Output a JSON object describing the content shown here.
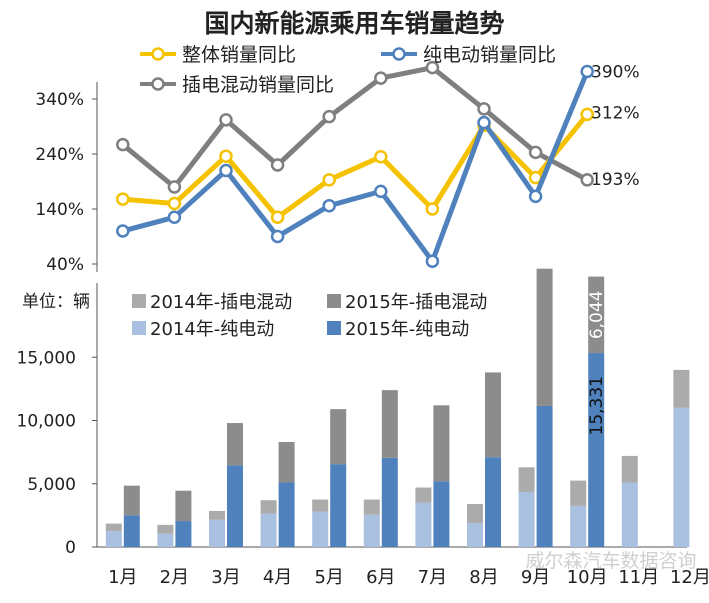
{
  "title": "国内新能源乘用车销量趋势",
  "colors": {
    "overall": "#F5C200",
    "ev_line": "#4F81BD",
    "phev_line": "#7F7F7F",
    "phev_2014": "#ABABAB",
    "phev_2015": "#8C8C8C",
    "ev_2014": "#A9C0E0",
    "ev_2015": "#4F81BD"
  },
  "watermark": "威尔森汽车数据咨询",
  "chart_data": [
    {
      "type": "line",
      "title": "国内新能源乘用车销量趋势",
      "categories": [
        "1月",
        "2月",
        "3月",
        "4月",
        "5月",
        "6月",
        "7月",
        "8月",
        "9月",
        "10月"
      ],
      "yticks": [
        "340%",
        "240%",
        "140%",
        "40%"
      ],
      "ylim": [
        40,
        400
      ],
      "legend_position": "top",
      "series": [
        {
          "name": "整体销量同比",
          "values": [
            158,
            150,
            236,
            125,
            193,
            235,
            140,
            292,
            197,
            312
          ],
          "end_label": "312%"
        },
        {
          "name": "纯电动销量同比",
          "values": [
            100,
            125,
            210,
            90,
            146,
            172,
            45,
            297,
            163,
            390
          ],
          "end_label": "390%"
        },
        {
          "name": "插电混动销量同比",
          "values": [
            257,
            180,
            302,
            220,
            308,
            378,
            397,
            322,
            243,
            193
          ],
          "end_label": "193%"
        }
      ]
    },
    {
      "type": "bar",
      "unit_label": "单位：辆",
      "categories": [
        "1月",
        "2月",
        "3月",
        "4月",
        "5月",
        "6月",
        "7月",
        "8月",
        "9月",
        "10月",
        "11月",
        "12月"
      ],
      "yticks": [
        "15,000",
        "10,000",
        "5,000",
        "0"
      ],
      "ylim": [
        0,
        18000
      ],
      "legend_position": "top-left",
      "series": [
        {
          "name": "2014年-纯电动",
          "values": [
            1250,
            1050,
            2150,
            2650,
            2800,
            2550,
            3500,
            1900,
            4350,
            3250,
            5100,
            11000
          ]
        },
        {
          "name": "2014年-插电混动",
          "values": [
            600,
            700,
            700,
            1050,
            950,
            1200,
            1200,
            1500,
            1950,
            2000,
            2100,
            3000
          ]
        },
        {
          "name": "2015年-纯电动",
          "values": [
            2500,
            2050,
            6450,
            5100,
            6550,
            7050,
            5200,
            7100,
            11150,
            15331,
            null,
            null
          ]
        },
        {
          "name": "2015年-插电混动",
          "values": [
            2350,
            2400,
            3350,
            3200,
            4350,
            5350,
            6000,
            6700,
            10850,
            6044,
            null,
            null
          ]
        }
      ],
      "data_labels": [
        "15,331",
        "6,044"
      ]
    }
  ]
}
